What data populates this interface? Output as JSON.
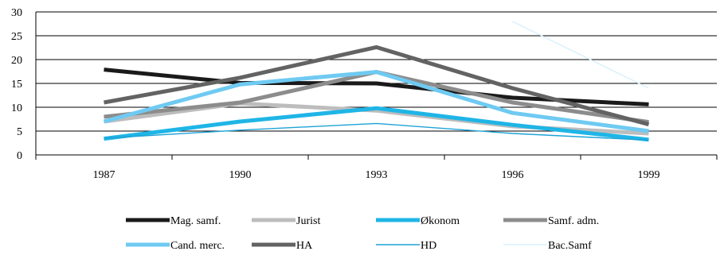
{
  "chart_data": {
    "type": "line",
    "title": "",
    "xlabel": "",
    "ylabel": "",
    "categories": [
      "1987",
      "1990",
      "1993",
      "1996",
      "1999"
    ],
    "ylim": [
      0,
      30
    ],
    "yticks": [
      "0",
      "5",
      "10",
      "15",
      "20",
      "25",
      "30"
    ],
    "grid": "horizontal",
    "legend_position": "bottom",
    "series": [
      {
        "name": "Mag. samf.",
        "color": "#1a1a1a",
        "width": "thick",
        "values": [
          17.9,
          15.1,
          15.0,
          12.0,
          10.6
        ]
      },
      {
        "name": "Jurist",
        "color": "#bdbdbd",
        "width": "thick",
        "values": [
          7.0,
          10.8,
          9.3,
          6.0,
          4.5
        ]
      },
      {
        "name": "Økonom",
        "color": "#1fb5e6",
        "width": "thick",
        "values": [
          3.4,
          7.0,
          9.8,
          6.3,
          3.2
        ]
      },
      {
        "name": "Samf. adm.",
        "color": "#8c8c8c",
        "width": "thick",
        "values": [
          8.0,
          11.0,
          17.4,
          11.0,
          6.9
        ]
      },
      {
        "name": "Cand. merc.",
        "color": "#6fcaf2",
        "width": "thick",
        "values": [
          7.0,
          14.8,
          17.4,
          8.8,
          5.0
        ]
      },
      {
        "name": "HA",
        "color": "#636363",
        "width": "thick",
        "values": [
          11.0,
          16.2,
          22.6,
          14.0,
          6.4
        ]
      },
      {
        "name": "HD",
        "color": "#1ea3d6",
        "width": "thin",
        "values": [
          3.5,
          5.2,
          6.6,
          4.5,
          3.1
        ]
      },
      {
        "name": "Bac.Samf",
        "color": "#d6f1fb",
        "width": "thin",
        "values": [
          null,
          null,
          null,
          28.0,
          14.0
        ]
      }
    ]
  }
}
